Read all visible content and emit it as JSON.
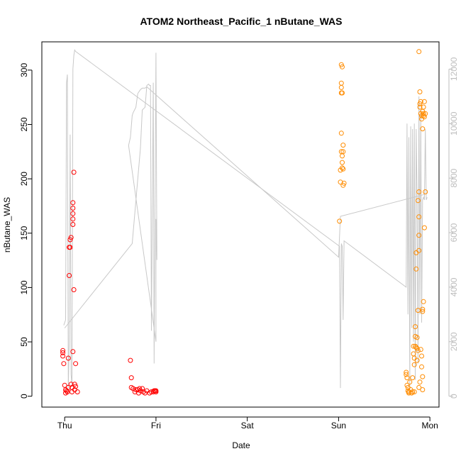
{
  "chart_data": {
    "type": "scatter",
    "title": "ATOM2 Northeast_Pacific_1 nButane_WAS",
    "xlabel": "Date",
    "ylabel": "nButane_WAS",
    "x_ticks": [
      "Thu",
      "Fri",
      "Sat",
      "Sun",
      "Mon"
    ],
    "x_range_days": [
      -0.25,
      4.1
    ],
    "ylim": [
      -10,
      326
    ],
    "y_ticks": [
      0,
      50,
      100,
      150,
      200,
      250,
      300
    ],
    "y2_lim": [
      -400,
      13000
    ],
    "y2_ticks": [
      0,
      2000,
      4000,
      6000,
      8000,
      10000,
      12000
    ],
    "grid": false,
    "legend": "none",
    "colors": {
      "series1": "#ff0000",
      "series2": "#ff8c00",
      "altitude_line": "#c8c8c8",
      "secondary_axis": "#bdbdbd"
    },
    "series": [
      {
        "points": [
          [
            -0.02,
            37
          ],
          [
            -0.02,
            40
          ],
          [
            -0.02,
            42
          ],
          [
            -0.01,
            30
          ],
          [
            0.0,
            10
          ],
          [
            0.01,
            6
          ],
          [
            0.01,
            3
          ],
          [
            0.02,
            5
          ],
          [
            0.03,
            4
          ],
          [
            0.04,
            8
          ],
          [
            0.04,
            35
          ],
          [
            0.05,
            111
          ],
          [
            0.05,
            137
          ],
          [
            0.06,
            137
          ],
          [
            0.06,
            144
          ],
          [
            0.07,
            146
          ],
          [
            0.07,
            11
          ],
          [
            0.08,
            4
          ],
          [
            0.08,
            8
          ],
          [
            0.09,
            41
          ],
          [
            0.09,
            178
          ],
          [
            0.09,
            173
          ],
          [
            0.09,
            168
          ],
          [
            0.09,
            163
          ],
          [
            0.09,
            158
          ],
          [
            0.1,
            98
          ],
          [
            0.1,
            206
          ],
          [
            0.11,
            6
          ],
          [
            0.11,
            11
          ],
          [
            0.12,
            30
          ],
          [
            0.12,
            9
          ],
          [
            0.14,
            4
          ],
          [
            0.72,
            33
          ],
          [
            0.73,
            17
          ],
          [
            0.73,
            8
          ],
          [
            0.75,
            7
          ],
          [
            0.77,
            4
          ],
          [
            0.78,
            6
          ],
          [
            0.8,
            6
          ],
          [
            0.81,
            3
          ],
          [
            0.82,
            7
          ],
          [
            0.83,
            5
          ],
          [
            0.85,
            7
          ],
          [
            0.86,
            4
          ],
          [
            0.88,
            3
          ],
          [
            0.9,
            5
          ],
          [
            0.93,
            3
          ],
          [
            0.95,
            4
          ],
          [
            0.97,
            4
          ],
          [
            0.98,
            5
          ],
          [
            0.99,
            5
          ],
          [
            1.0,
            4
          ],
          [
            1.0,
            5
          ]
        ]
      },
      {
        "points": [
          [
            3.01,
            161
          ],
          [
            3.02,
            197
          ],
          [
            3.02,
            208
          ],
          [
            3.03,
            225
          ],
          [
            3.03,
            242
          ],
          [
            3.03,
            279
          ],
          [
            3.03,
            284
          ],
          [
            3.03,
            288
          ],
          [
            3.03,
            305
          ],
          [
            3.04,
            303
          ],
          [
            3.04,
            279
          ],
          [
            3.04,
            221
          ],
          [
            3.04,
            210
          ],
          [
            3.05,
            209
          ],
          [
            3.05,
            194
          ],
          [
            3.06,
            196
          ],
          [
            3.05,
            231
          ],
          [
            3.05,
            225
          ],
          [
            3.04,
            215
          ],
          [
            3.74,
            22
          ],
          [
            3.74,
            20
          ],
          [
            3.75,
            17
          ],
          [
            3.75,
            10
          ],
          [
            3.76,
            8
          ],
          [
            3.76,
            5
          ],
          [
            3.77,
            3
          ],
          [
            3.77,
            4
          ],
          [
            3.78,
            13
          ],
          [
            3.79,
            6
          ],
          [
            3.8,
            3
          ],
          [
            3.81,
            17
          ],
          [
            3.82,
            39
          ],
          [
            3.82,
            46
          ],
          [
            3.83,
            29
          ],
          [
            3.83,
            35
          ],
          [
            3.84,
            46
          ],
          [
            3.84,
            55
          ],
          [
            3.84,
            64
          ],
          [
            3.85,
            45
          ],
          [
            3.85,
            117
          ],
          [
            3.85,
            132
          ],
          [
            3.86,
            54
          ],
          [
            3.86,
            44
          ],
          [
            3.86,
            33
          ],
          [
            3.87,
            42
          ],
          [
            3.87,
            180
          ],
          [
            3.88,
            188
          ],
          [
            3.88,
            165
          ],
          [
            3.88,
            148
          ],
          [
            3.88,
            134
          ],
          [
            3.87,
            79
          ],
          [
            3.88,
            317
          ],
          [
            3.89,
            280
          ],
          [
            3.89,
            269
          ],
          [
            3.89,
            266
          ],
          [
            3.9,
            271
          ],
          [
            3.9,
            260
          ],
          [
            3.91,
            258
          ],
          [
            3.91,
            255
          ],
          [
            3.92,
            262
          ],
          [
            3.92,
            246
          ],
          [
            3.93,
            258
          ],
          [
            3.93,
            266
          ],
          [
            3.93,
            260
          ],
          [
            3.94,
            271
          ],
          [
            3.94,
            257
          ],
          [
            3.95,
            260
          ],
          [
            3.92,
            80
          ],
          [
            3.92,
            78
          ],
          [
            3.93,
            87
          ],
          [
            3.94,
            155
          ],
          [
            3.95,
            188
          ],
          [
            3.9,
            43
          ],
          [
            3.91,
            37
          ],
          [
            3.91,
            27
          ],
          [
            3.92,
            18
          ],
          [
            3.92,
            6
          ],
          [
            3.89,
            13
          ],
          [
            3.88,
            8
          ],
          [
            3.83,
            4
          ],
          [
            3.81,
            4
          ]
        ]
      }
    ],
    "altitude_line": [
      [
        -0.01,
        2600
      ],
      [
        0.01,
        2800
      ],
      [
        0.02,
        11500
      ],
      [
        0.03,
        11800
      ],
      [
        0.04,
        300
      ],
      [
        0.05,
        2000
      ],
      [
        0.06,
        9600
      ],
      [
        0.07,
        800
      ],
      [
        0.08,
        400
      ],
      [
        0.09,
        12000
      ],
      [
        0.1,
        12500
      ],
      [
        0.11,
        12700
      ],
      [
        0.12,
        12650
      ],
      [
        3.01,
        5500
      ],
      [
        3.02,
        300
      ],
      [
        3.03,
        5600
      ],
      [
        3.04,
        5500
      ],
      [
        3.05,
        2800
      ],
      [
        3.06,
        5700
      ],
      [
        3.74,
        4000
      ],
      [
        3.75,
        10000
      ],
      [
        3.76,
        3000
      ],
      [
        3.77,
        9500
      ],
      [
        3.78,
        300
      ],
      [
        3.79,
        9900
      ],
      [
        3.8,
        2500
      ],
      [
        3.81,
        9800
      ],
      [
        3.82,
        2000
      ],
      [
        3.83,
        10000
      ],
      [
        3.84,
        600
      ],
      [
        3.85,
        9800
      ],
      [
        3.86,
        7200
      ],
      [
        3.87,
        1200
      ],
      [
        3.88,
        11000
      ],
      [
        3.89,
        3000
      ],
      [
        3.9,
        10500
      ],
      [
        3.91,
        2700
      ],
      [
        3.92,
        7200
      ],
      [
        3.93,
        7300
      ],
      [
        3.94,
        7200
      ],
      [
        3.95,
        9800
      ],
      [
        3.96,
        7200
      ],
      [
        3.97,
        7300
      ]
    ],
    "altitude_line_2": [
      [
        0.0,
        2500
      ],
      [
        0.74,
        5600
      ],
      [
        0.83,
        9100
      ],
      [
        0.85,
        10500
      ],
      [
        0.88,
        10600
      ],
      [
        0.89,
        11000
      ],
      [
        0.9,
        11400
      ],
      [
        0.92,
        11450
      ],
      [
        0.93,
        11400
      ],
      [
        0.94,
        11400
      ],
      [
        0.95,
        2400
      ],
      [
        0.97,
        11500
      ],
      [
        0.98,
        1200
      ],
      [
        1.0,
        12600
      ],
      [
        1.01,
        5000
      ],
      [
        1.0,
        6500
      ],
      [
        1.0,
        2000
      ],
      [
        0.7,
        9200
      ],
      [
        0.72,
        9500
      ],
      [
        0.74,
        10300
      ],
      [
        0.75,
        10400
      ],
      [
        0.78,
        10600
      ],
      [
        0.8,
        11100
      ],
      [
        0.82,
        11200
      ],
      [
        0.83,
        11250
      ],
      [
        0.85,
        11300
      ],
      [
        0.88,
        11300
      ],
      [
        0.9,
        11350
      ],
      [
        3.0,
        5100
      ],
      [
        3.02,
        6600
      ],
      [
        3.94,
        7400
      ]
    ]
  }
}
